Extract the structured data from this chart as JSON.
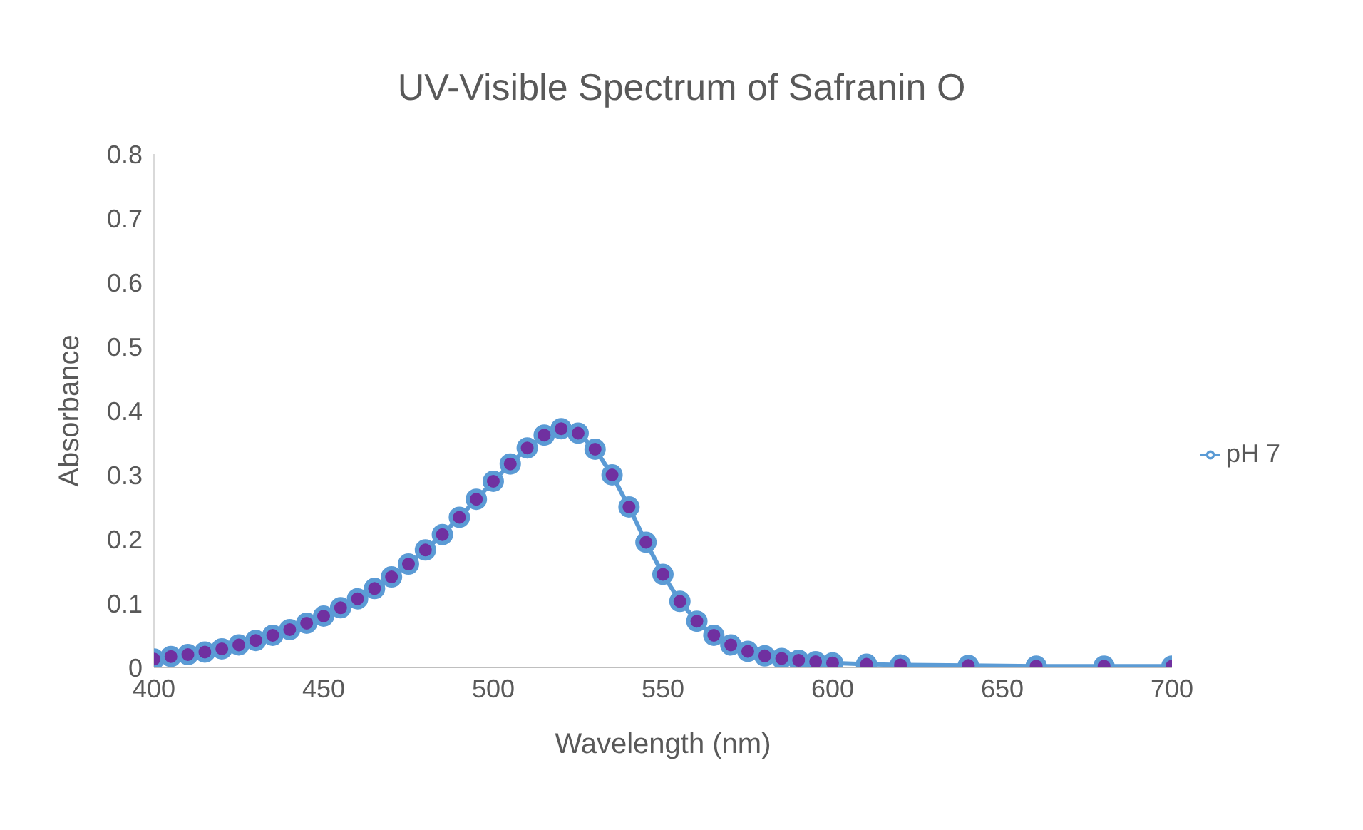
{
  "chart_data": {
    "type": "line",
    "title": "UV-Visible Spectrum of Safranin O",
    "xlabel": "Wavelength (nm)",
    "ylabel": "Absorbance",
    "x": [
      400,
      405,
      410,
      415,
      420,
      425,
      430,
      435,
      440,
      445,
      450,
      455,
      460,
      465,
      470,
      475,
      480,
      485,
      490,
      495,
      500,
      505,
      510,
      515,
      520,
      525,
      530,
      535,
      540,
      545,
      550,
      555,
      560,
      565,
      570,
      575,
      580,
      585,
      590,
      595,
      600,
      610,
      620,
      640,
      660,
      680,
      700
    ],
    "series": [
      {
        "name": "pH 7",
        "color": "#5b9bd5",
        "values": [
          0.013,
          0.017,
          0.02,
          0.024,
          0.029,
          0.035,
          0.042,
          0.05,
          0.059,
          0.069,
          0.08,
          0.093,
          0.107,
          0.123,
          0.141,
          0.161,
          0.183,
          0.207,
          0.234,
          0.262,
          0.29,
          0.317,
          0.342,
          0.362,
          0.372,
          0.365,
          0.34,
          0.3,
          0.25,
          0.195,
          0.145,
          0.103,
          0.072,
          0.05,
          0.035,
          0.025,
          0.018,
          0.014,
          0.011,
          0.009,
          0.007,
          0.005,
          0.004,
          0.003,
          0.002,
          0.002,
          0.002
        ]
      }
    ],
    "xlim": [
      400,
      700
    ],
    "xticks": [
      400,
      450,
      500,
      550,
      600,
      650,
      700
    ],
    "ylim": [
      0,
      0.8
    ],
    "yticks": [
      0,
      0.1,
      0.2,
      0.3,
      0.4,
      0.5,
      0.6,
      0.7,
      0.8
    ],
    "grid": false,
    "legend": "right",
    "marker": "circle",
    "line_style": "solid"
  }
}
